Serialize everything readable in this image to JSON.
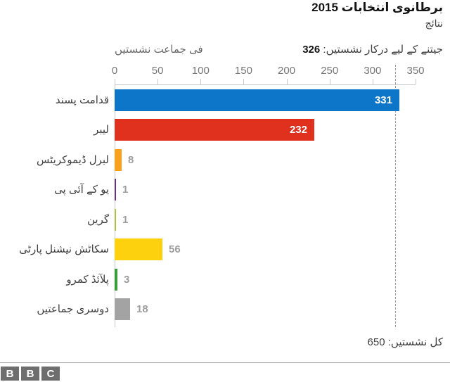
{
  "header": {
    "title": "برطانوی انتخابات 2015",
    "subtitle": "نتائج"
  },
  "chart_data": {
    "type": "bar",
    "orientation": "horizontal",
    "title": "برطانوی انتخابات 2015",
    "subtitle": "نتائج",
    "axis_label": "فی جماعت نشستیں",
    "majority_label": "جیتنے کے لیے درکار نشستیں:",
    "majority_value": 326,
    "x_ticks": [
      0,
      50,
      100,
      150,
      200,
      250,
      300,
      350
    ],
    "xlim": [
      0,
      350
    ],
    "grid": false,
    "legend": false,
    "ids": [
      "conservative",
      "labour",
      "liberal-democrats",
      "ukip",
      "green",
      "snp",
      "plaid-cymru",
      "others"
    ],
    "categories": [
      "قدامت پسند",
      "لیبر",
      "لبرل ڈیموکریٹس",
      "یو کے آئی پی",
      "گرین",
      "سکاٹش نیشنل پارٹی",
      "پلآئڈ کمرو",
      "دوسری جماعتیں"
    ],
    "values": [
      331,
      232,
      8,
      1,
      1,
      56,
      3,
      18
    ],
    "colors": [
      "#0d76c8",
      "#e0301e",
      "#f9a11b",
      "#6d2d87",
      "#a2c63d",
      "#fdd10e",
      "#33a22f",
      "#a3a3a3"
    ],
    "value_label_inside_color": "#ffffff",
    "value_label_outside_color": "#9e9e9e",
    "threshold_line_color": "#9b9b9b",
    "total_note": "کل نشستیں: 650"
  },
  "footer": {
    "total_label": "کل نشستیں:",
    "total_value": "650",
    "logo_letters": [
      "B",
      "B",
      "C"
    ]
  }
}
